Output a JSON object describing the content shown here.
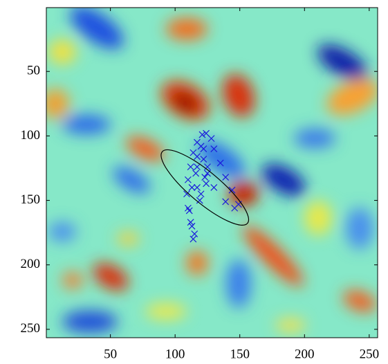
{
  "chart_data": {
    "type": "scatter",
    "xlim": [
      0.5,
      256.5
    ],
    "ylim": [
      0.5,
      256.5
    ],
    "y_reversed": true,
    "xticks": [
      50,
      100,
      150,
      200,
      250
    ],
    "yticks": [
      50,
      100,
      150,
      200,
      250
    ],
    "series": [
      {
        "color": "#1a1adb",
        "x": [
          114,
          112,
          110,
          109,
          110,
          112,
          114,
          117,
          121,
          124,
          128,
          130,
          135,
          139,
          144,
          149,
          146,
          139,
          130,
          125,
          122,
          120,
          117,
          116,
          117,
          120,
          124,
          125,
          122,
          117,
          113,
          111,
          113,
          115,
          119,
          123
        ],
        "y": [
          180,
          167,
          156,
          145,
          134,
          124,
          113,
          105,
          99,
          98,
          102,
          110,
          121,
          132,
          142,
          153,
          156,
          151,
          140,
          129,
          118,
          108,
          116,
          129,
          140,
          145,
          137,
          124,
          110,
          124,
          140,
          158,
          170,
          176,
          150,
          132
        ]
      }
    ],
    "ellipse": {
      "cx": 123,
      "cy": 140,
      "rx": 43,
      "ry": 12,
      "angle": 40,
      "color": "#000000"
    }
  }
}
